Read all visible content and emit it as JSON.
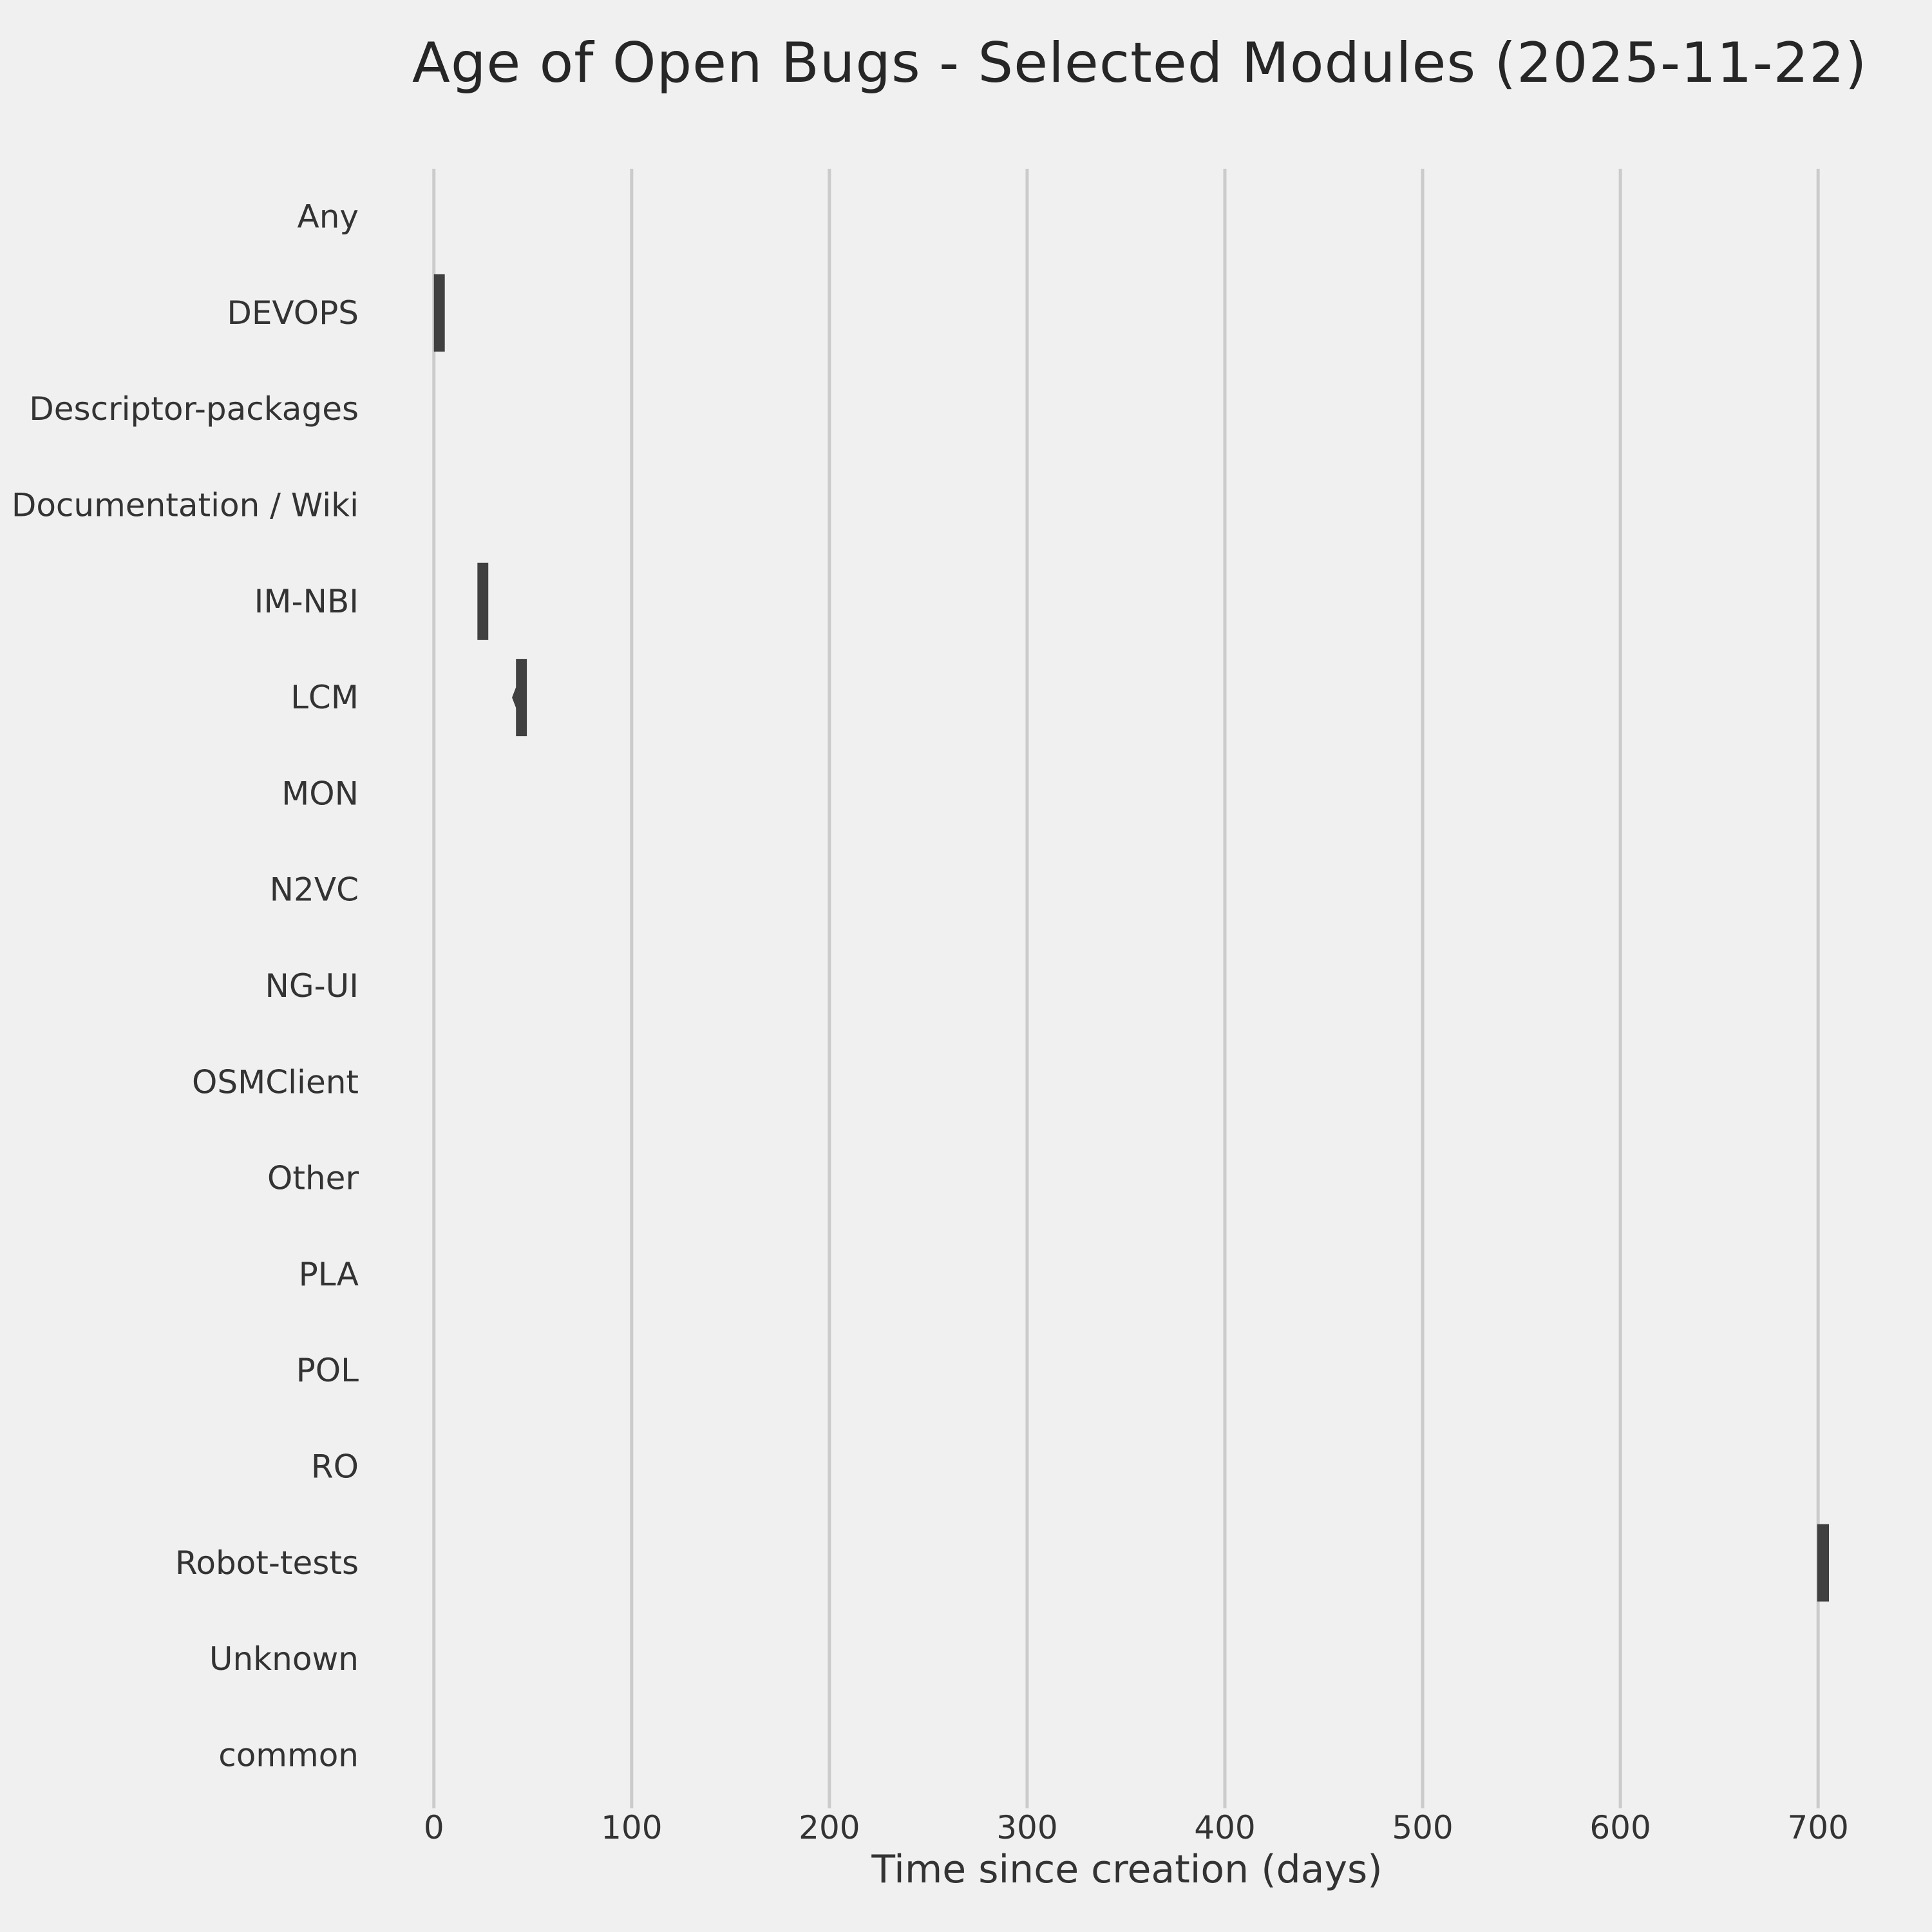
{
  "title": "Age of Open Bugs - Selected Modules (2025-11-22)",
  "chart_data": {
    "type": "violin",
    "orientation": "horizontal",
    "title": "Age of Open Bugs - Selected Modules (2025-11-22)",
    "xlabel": "Time since creation (days)",
    "ylabel": "",
    "grid": "vertical-only",
    "xlim": [
      -11,
      712
    ],
    "xticks": [
      0,
      100,
      200,
      300,
      400,
      500,
      600,
      700
    ],
    "categories": [
      "Any",
      "DEVOPS",
      "Descriptor-packages",
      "Documentation / Wiki",
      "IM-NBI",
      "LCM",
      "MON",
      "N2VC",
      "NG-UI",
      "OSMClient",
      "Other",
      "PLA",
      "POL",
      "RO",
      "Robot-tests",
      "Unknown",
      "common"
    ],
    "series": [
      {
        "category": "DEVOPS",
        "approx_age_range_days": [
          0,
          5.5
        ]
      },
      {
        "category": "IM-NBI",
        "approx_age_range_days": [
          22,
          27.5
        ]
      },
      {
        "category": "LCM",
        "approx_age_range_days": [
          41.5,
          47
        ],
        "left_tip_days": 39.5
      },
      {
        "category": "Robot-tests",
        "approx_age_range_days": [
          699.5,
          705.5
        ]
      }
    ],
    "modules_without_open_bugs": [
      "Any",
      "Descriptor-packages",
      "Documentation / Wiki",
      "MON",
      "N2VC",
      "NG-UI",
      "OSMClient",
      "Other",
      "PLA",
      "POL",
      "RO",
      "Unknown",
      "common"
    ],
    "colors": {
      "background": "#f0f0f0",
      "grid": "#cbcbcb",
      "violin_fill": "#404040",
      "text": "#333333",
      "title_text": "#262626"
    }
  }
}
